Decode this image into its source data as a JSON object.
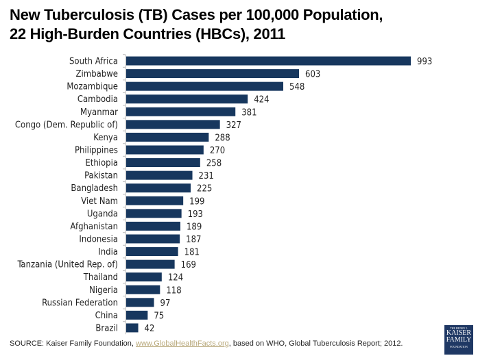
{
  "title_line1": "New Tuberculosis (TB) Cases per 100,000 Population,",
  "title_line2": "22 High-Burden Countries (HBCs), 2011",
  "chart_data": {
    "type": "bar",
    "orientation": "horizontal",
    "title": "New Tuberculosis (TB) Cases per 100,000 Population, 22 High-Burden Countries (HBCs), 2011",
    "categories": [
      "South Africa",
      "Zimbabwe",
      "Mozambique",
      "Cambodia",
      "Myanmar",
      "Congo (Dem. Republic of)",
      "Kenya",
      "Philippines",
      "Ethiopia",
      "Pakistan",
      "Bangladesh",
      "Viet Nam",
      "Uganda",
      "Afghanistan",
      "Indonesia",
      "India",
      "Tanzania (United Rep. of)",
      "Thailand",
      "Nigeria",
      "Russian Federation",
      "China",
      "Brazil"
    ],
    "values": [
      993,
      603,
      548,
      424,
      381,
      327,
      288,
      270,
      258,
      231,
      225,
      199,
      193,
      189,
      187,
      181,
      169,
      124,
      118,
      97,
      75,
      42
    ],
    "xlim": [
      0,
      993
    ],
    "grid": false,
    "bar_color": "#17375e"
  },
  "source": {
    "prefix": "SOURCE: Kaiser Family Foundation, ",
    "link": "www.GlobalHealthFacts.org",
    "suffix": ",  based on WHO, Global Tuberculosis Report; 2012."
  },
  "logo": {
    "line1": "THE HENRY J.",
    "line2": "KAISER",
    "line3": "FAMILY",
    "line4": "FOUNDATION"
  }
}
